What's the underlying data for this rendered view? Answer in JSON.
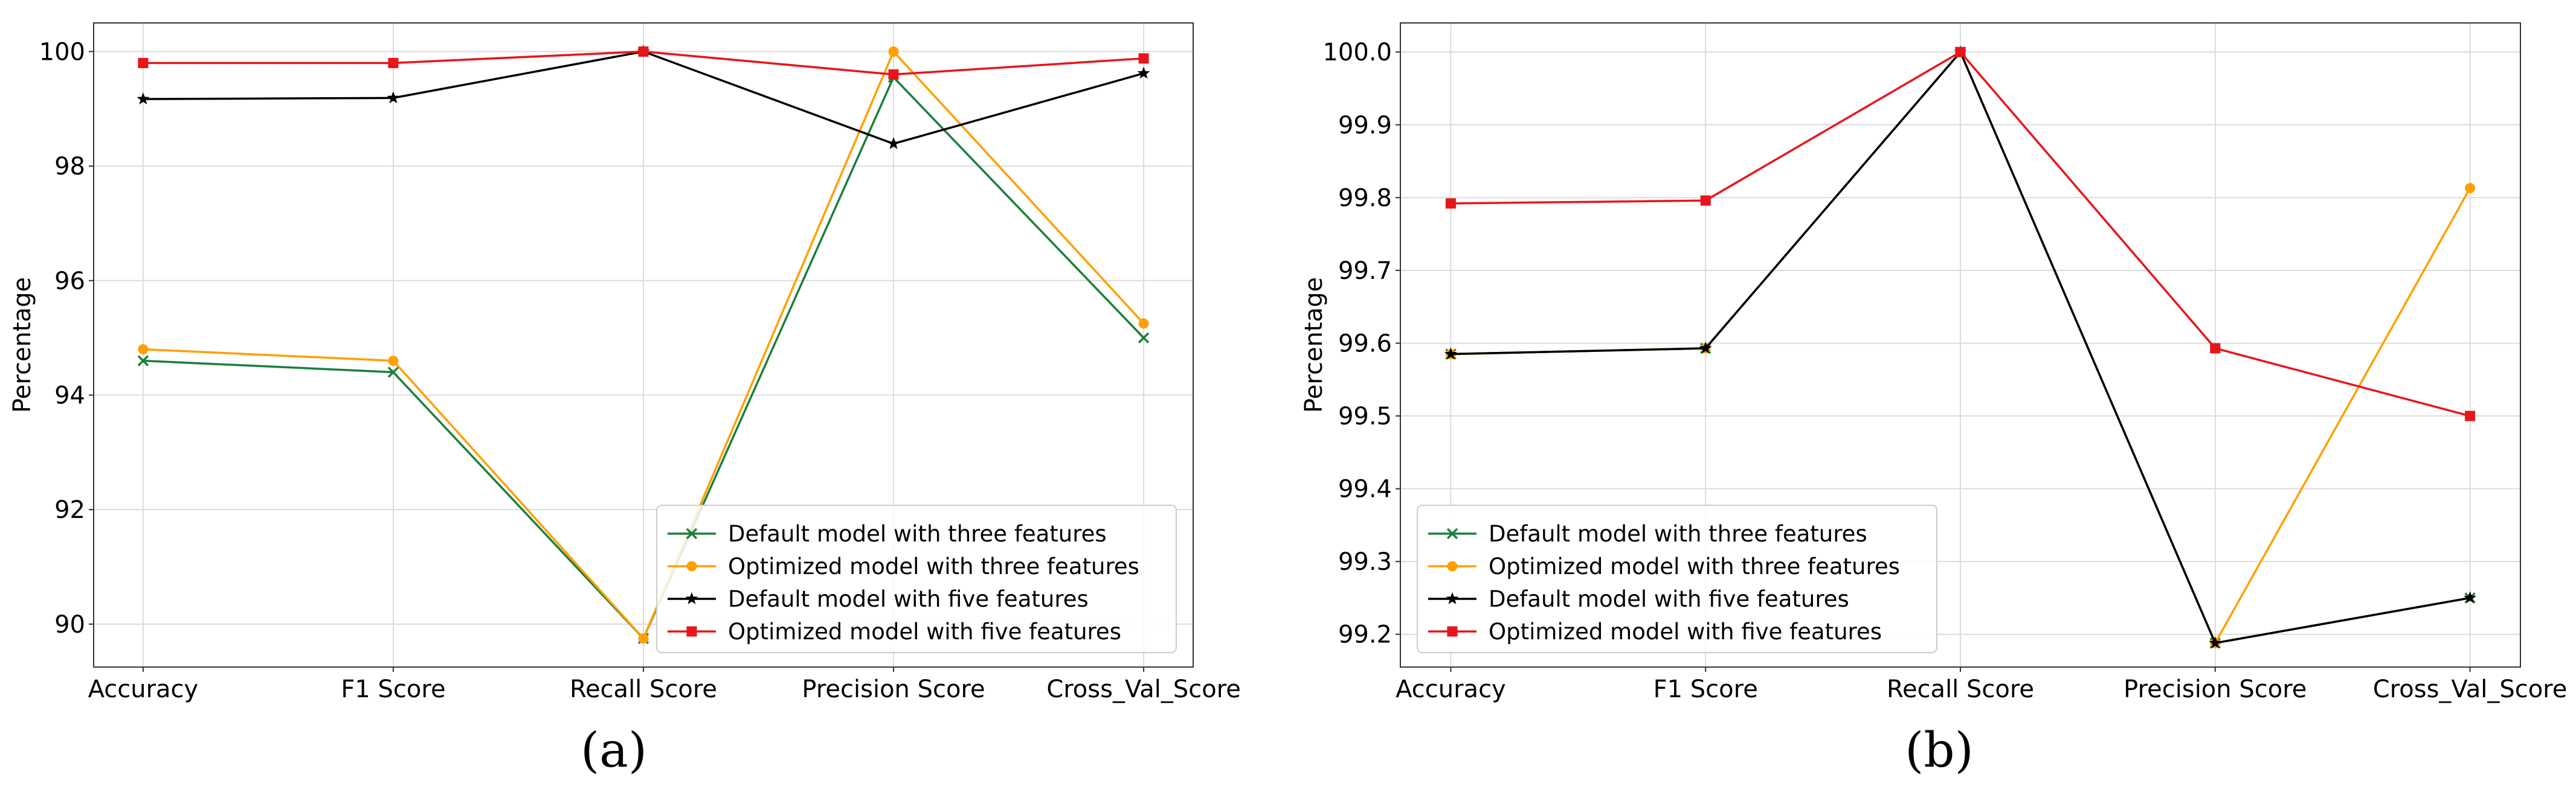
{
  "chart_data": [
    {
      "type": "line",
      "panel_label": "(a)",
      "title": "",
      "xlabel": "",
      "ylabel": "Percentage",
      "categories": [
        "Accuracy",
        "F1 Score",
        "Recall Score",
        "Precision Score",
        "Cross_Val_Score"
      ],
      "ylim": [
        89.25,
        100.5
      ],
      "yticks": [
        90,
        92,
        94,
        96,
        98,
        100
      ],
      "ytick_labels": [
        "90",
        "92",
        "94",
        "96",
        "98",
        "100"
      ],
      "grid": true,
      "legend_position": "lower-right",
      "series": [
        {
          "name": "Default model with three features",
          "color": "#1a7f3c",
          "marker": "x",
          "values": [
            94.6,
            94.4,
            89.75,
            99.55,
            95.0
          ]
        },
        {
          "name": "Optimized model with three features",
          "color": "#ffa000",
          "marker": "o",
          "values": [
            94.8,
            94.6,
            89.75,
            100.0,
            95.25
          ]
        },
        {
          "name": "Default model with five features",
          "color": "#000000",
          "marker": "*",
          "values": [
            99.17,
            99.19,
            100.0,
            98.39,
            99.62
          ]
        },
        {
          "name": "Optimized model with five features",
          "color": "#e8151b",
          "marker": "s",
          "values": [
            99.8,
            99.8,
            100.0,
            99.6,
            99.88
          ]
        }
      ]
    },
    {
      "type": "line",
      "panel_label": "(b)",
      "title": "",
      "xlabel": "",
      "ylabel": "Percentage",
      "categories": [
        "Accuracy",
        "F1 Score",
        "Recall Score",
        "Precision Score",
        "Cross_Val_Score"
      ],
      "ylim": [
        99.155,
        100.04
      ],
      "yticks": [
        99.2,
        99.3,
        99.4,
        99.5,
        99.6,
        99.7,
        99.8,
        99.9,
        100.0
      ],
      "ytick_labels": [
        "99.2",
        "99.3",
        "99.4",
        "99.5",
        "99.6",
        "99.7",
        "99.8",
        "99.9",
        "100.0"
      ],
      "grid": true,
      "legend_position": "lower-left",
      "series": [
        {
          "name": "Default model with three features",
          "color": "#1a7f3c",
          "marker": "x",
          "values": [
            99.585,
            99.593,
            100.0,
            99.188,
            99.25
          ]
        },
        {
          "name": "Optimized model with three features",
          "color": "#ffa000",
          "marker": "o",
          "values": [
            99.585,
            99.593,
            100.0,
            99.188,
            99.813
          ]
        },
        {
          "name": "Default model with five features",
          "color": "#000000",
          "marker": "*",
          "values": [
            99.585,
            99.593,
            100.0,
            99.188,
            99.25
          ]
        },
        {
          "name": "Optimized model with five features",
          "color": "#e8151b",
          "marker": "s",
          "values": [
            99.792,
            99.796,
            100.0,
            99.593,
            99.5
          ]
        }
      ]
    }
  ]
}
